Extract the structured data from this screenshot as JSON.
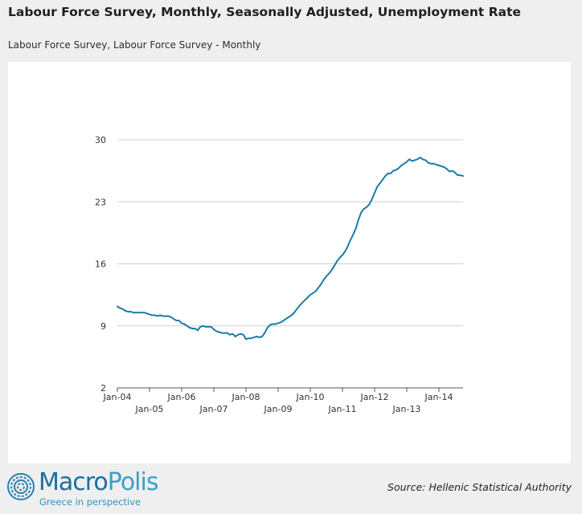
{
  "header": {
    "title": "Labour Force Survey, Monthly, Seasonally Adjusted, Unemployment Rate",
    "subtitle": "Labour Force Survey, Labour Force Survey - Monthly"
  },
  "footer": {
    "logo_macro": "Macro",
    "logo_polis": "Polis",
    "logo_tagline": "Greece in perspective",
    "source": "Source: Hellenic Statistical Authority"
  },
  "colors": {
    "line": "#1a7ba8",
    "grid": "#d0d0d0",
    "axis": "#555555",
    "logo_macro": "#1a6fa0",
    "logo_polis": "#3aa0c8",
    "logo_tagline": "#2e95c4",
    "logo_icon": "#2a7fb0"
  },
  "icons": {
    "logo": "concentric-circles-icon"
  },
  "chart_data": {
    "type": "line",
    "title": "Labour Force Survey, Monthly, Seasonally Adjusted, Unemployment Rate",
    "subtitle": "Labour Force Survey, Labour Force Survey - Monthly",
    "xlabel": "",
    "ylabel": "",
    "ylim": [
      2,
      30
    ],
    "yticks": [
      2,
      9,
      16,
      23,
      30
    ],
    "xlim": [
      "2004-01",
      "2014-10"
    ],
    "xticks": [
      {
        "date": "2004-01",
        "label": "Jan-04",
        "row": 0
      },
      {
        "date": "2005-01",
        "label": "Jan-05",
        "row": 1
      },
      {
        "date": "2006-01",
        "label": "Jan-06",
        "row": 0
      },
      {
        "date": "2007-01",
        "label": "Jan-07",
        "row": 1
      },
      {
        "date": "2008-01",
        "label": "Jan-08",
        "row": 0
      },
      {
        "date": "2009-01",
        "label": "Jan-09",
        "row": 1
      },
      {
        "date": "2010-01",
        "label": "Jan-10",
        "row": 0
      },
      {
        "date": "2011-01",
        "label": "Jan-11",
        "row": 1
      },
      {
        "date": "2012-01",
        "label": "Jan-12",
        "row": 0
      },
      {
        "date": "2013-01",
        "label": "Jan-13",
        "row": 1
      },
      {
        "date": "2014-01",
        "label": "Jan-14",
        "row": 0
      }
    ],
    "grid": "horizontal",
    "legend": "none",
    "series": [
      {
        "x": [
          "2004-01",
          "2004-02",
          "2004-03",
          "2004-04",
          "2004-05",
          "2004-06",
          "2004-07",
          "2004-08",
          "2004-09",
          "2004-10",
          "2004-11",
          "2004-12",
          "2005-01",
          "2005-02",
          "2005-03",
          "2005-04",
          "2005-05",
          "2005-06",
          "2005-07",
          "2005-08",
          "2005-09",
          "2005-10",
          "2005-11",
          "2005-12",
          "2006-01",
          "2006-02",
          "2006-03",
          "2006-04",
          "2006-05",
          "2006-06",
          "2006-07",
          "2006-08",
          "2006-09",
          "2006-10",
          "2006-11",
          "2006-12",
          "2007-01",
          "2007-02",
          "2007-03",
          "2007-04",
          "2007-05",
          "2007-06",
          "2007-07",
          "2007-08",
          "2007-09",
          "2007-10",
          "2007-11",
          "2007-12",
          "2008-01",
          "2008-02",
          "2008-03",
          "2008-04",
          "2008-05",
          "2008-06",
          "2008-07",
          "2008-08",
          "2008-09",
          "2008-10",
          "2008-11",
          "2008-12",
          "2009-01",
          "2009-02",
          "2009-03",
          "2009-04",
          "2009-05",
          "2009-06",
          "2009-07",
          "2009-08",
          "2009-09",
          "2009-10",
          "2009-11",
          "2009-12",
          "2010-01",
          "2010-02",
          "2010-03",
          "2010-04",
          "2010-05",
          "2010-06",
          "2010-07",
          "2010-08",
          "2010-09",
          "2010-10",
          "2010-11",
          "2010-12",
          "2011-01",
          "2011-02",
          "2011-03",
          "2011-04",
          "2011-05",
          "2011-06",
          "2011-07",
          "2011-08",
          "2011-09",
          "2011-10",
          "2011-11",
          "2011-12",
          "2012-01",
          "2012-02",
          "2012-03",
          "2012-04",
          "2012-05",
          "2012-06",
          "2012-07",
          "2012-08",
          "2012-09",
          "2012-10",
          "2012-11",
          "2012-12",
          "2013-01",
          "2013-02",
          "2013-03",
          "2013-04",
          "2013-05",
          "2013-06",
          "2013-07",
          "2013-08",
          "2013-09",
          "2013-10",
          "2013-11",
          "2013-12",
          "2014-01",
          "2014-02",
          "2014-03",
          "2014-04",
          "2014-05",
          "2014-06",
          "2014-07",
          "2014-08",
          "2014-09",
          "2014-10"
        ],
        "values": [
          11.2,
          11.0,
          10.9,
          10.7,
          10.6,
          10.6,
          10.5,
          10.5,
          10.5,
          10.5,
          10.5,
          10.4,
          10.3,
          10.2,
          10.2,
          10.1,
          10.2,
          10.1,
          10.1,
          10.1,
          10.0,
          9.8,
          9.6,
          9.6,
          9.3,
          9.2,
          9.0,
          8.8,
          8.7,
          8.7,
          8.5,
          8.9,
          9.0,
          8.9,
          8.9,
          8.9,
          8.6,
          8.4,
          8.3,
          8.2,
          8.2,
          8.2,
          8.0,
          8.1,
          7.8,
          8.0,
          8.1,
          8.0,
          7.5,
          7.6,
          7.6,
          7.7,
          7.8,
          7.7,
          7.8,
          8.2,
          8.8,
          9.1,
          9.2,
          9.2,
          9.3,
          9.4,
          9.6,
          9.8,
          10.0,
          10.2,
          10.5,
          10.9,
          11.3,
          11.6,
          11.9,
          12.2,
          12.5,
          12.7,
          12.9,
          13.3,
          13.7,
          14.2,
          14.6,
          14.9,
          15.3,
          15.8,
          16.3,
          16.7,
          17.0,
          17.4,
          18.0,
          18.7,
          19.3,
          20.0,
          21.0,
          21.8,
          22.2,
          22.4,
          22.7,
          23.3,
          24.0,
          24.7,
          25.1,
          25.5,
          25.9,
          26.2,
          26.2,
          26.5,
          26.6,
          26.8,
          27.1,
          27.3,
          27.5,
          27.8,
          27.6,
          27.7,
          27.8,
          28.0,
          27.8,
          27.7,
          27.4,
          27.3,
          27.3,
          27.2,
          27.1,
          27.0,
          26.9,
          26.7,
          26.4,
          26.5,
          26.3,
          26.0,
          26.0,
          25.9
        ]
      }
    ]
  }
}
